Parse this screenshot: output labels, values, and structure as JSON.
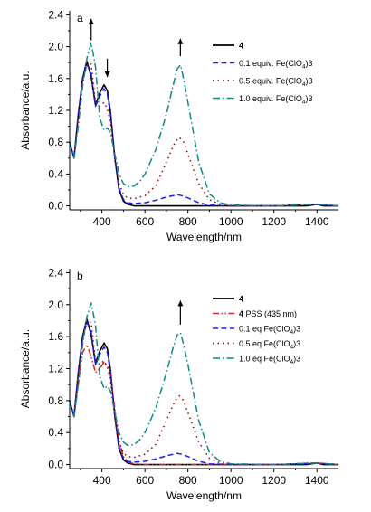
{
  "chart_data": [
    {
      "type": "line",
      "panel_label": "a",
      "xlabel": "Wavelength/nm",
      "ylabel": "Absorbance/a.u.",
      "xlim": [
        250,
        1500
      ],
      "ylim": [
        -0.05,
        2.45
      ],
      "xticks": [
        400,
        600,
        800,
        1000,
        1200,
        1400
      ],
      "yticks": [
        0.0,
        0.4,
        0.8,
        1.2,
        1.6,
        2.0,
        2.4
      ],
      "ytick_labels": [
        "0.0",
        "0.4",
        "0.8",
        "1.2",
        "1.6",
        "2.0",
        "2.4"
      ],
      "grid": false,
      "legend_position": "top-right",
      "arrows": [
        {
          "x": 350,
          "direction": "up"
        },
        {
          "x": 425,
          "direction": "down"
        },
        {
          "x": 765,
          "direction": "up"
        }
      ],
      "series": [
        {
          "name": "4",
          "name_sub": "",
          "name_tail": "",
          "color": "#000000",
          "style": "solid",
          "x": [
            250,
            270,
            290,
            310,
            330,
            350,
            370,
            390,
            410,
            425,
            440,
            460,
            480,
            500,
            520,
            550,
            580,
            650,
            750,
            850,
            1000,
            1200,
            1350,
            1400,
            1430,
            1500
          ],
          "y": [
            0.8,
            0.6,
            1.15,
            1.6,
            1.82,
            1.62,
            1.27,
            1.42,
            1.52,
            1.45,
            1.18,
            0.6,
            0.2,
            0.06,
            0.02,
            0.0,
            0.0,
            0.0,
            0.0,
            0.0,
            0.0,
            0.0,
            0.0,
            0.02,
            0.0,
            0.0
          ]
        },
        {
          "name": "0.1 equiv. Fe(ClO",
          "name_sub": "4",
          "name_tail": ")3",
          "color": "#1a1aff",
          "style": "dash",
          "x": [
            250,
            270,
            290,
            310,
            330,
            350,
            370,
            390,
            410,
            425,
            440,
            460,
            480,
            500,
            520,
            550,
            600,
            650,
            700,
            750,
            770,
            800,
            850,
            900,
            1000,
            1200,
            1400,
            1500
          ],
          "y": [
            0.8,
            0.6,
            1.15,
            1.58,
            1.78,
            1.66,
            1.25,
            1.38,
            1.47,
            1.4,
            1.15,
            0.6,
            0.22,
            0.08,
            0.04,
            0.03,
            0.04,
            0.07,
            0.11,
            0.14,
            0.13,
            0.1,
            0.04,
            0.01,
            0.0,
            0.0,
            0.02,
            0.0
          ]
        },
        {
          "name": "0.5 equiv. Fe(ClO",
          "name_sub": "4",
          "name_tail": ")3",
          "color": "#990000",
          "style": "dot",
          "x": [
            250,
            270,
            290,
            310,
            330,
            350,
            370,
            390,
            410,
            425,
            440,
            460,
            480,
            500,
            520,
            550,
            600,
            650,
            700,
            740,
            760,
            780,
            800,
            850,
            900,
            950,
            1000,
            1200,
            1400,
            1500
          ],
          "y": [
            0.8,
            0.6,
            1.1,
            1.55,
            1.78,
            1.78,
            1.3,
            1.25,
            1.3,
            1.22,
            1.05,
            0.6,
            0.28,
            0.14,
            0.1,
            0.09,
            0.13,
            0.25,
            0.55,
            0.8,
            0.86,
            0.8,
            0.65,
            0.28,
            0.08,
            0.02,
            0.0,
            0.0,
            0.02,
            0.0
          ]
        },
        {
          "name": "1.0 equiv. Fe(ClO",
          "name_sub": "4",
          "name_tail": ")3",
          "color": "#0a8a8a",
          "style": "dashdot",
          "x": [
            250,
            270,
            290,
            310,
            330,
            350,
            370,
            390,
            410,
            425,
            440,
            460,
            480,
            500,
            520,
            550,
            580,
            600,
            650,
            700,
            730,
            750,
            765,
            780,
            800,
            850,
            900,
            950,
            1000,
            1200,
            1400,
            1500
          ],
          "y": [
            0.8,
            0.6,
            1.0,
            1.5,
            1.85,
            2.05,
            1.75,
            1.1,
            0.95,
            0.98,
            0.92,
            0.65,
            0.4,
            0.28,
            0.24,
            0.25,
            0.32,
            0.4,
            0.7,
            1.15,
            1.5,
            1.72,
            1.77,
            1.6,
            1.3,
            0.55,
            0.15,
            0.04,
            0.01,
            0.0,
            0.02,
            0.0
          ]
        }
      ]
    },
    {
      "type": "line",
      "panel_label": "b",
      "xlabel": "Wavelength/nm",
      "ylabel": "Absorbance/a.u.",
      "xlim": [
        250,
        1500
      ],
      "ylim": [
        -0.05,
        2.45
      ],
      "xticks": [
        400,
        600,
        800,
        1000,
        1200,
        1400
      ],
      "yticks": [
        0.0,
        0.4,
        0.8,
        1.2,
        1.6,
        2.0,
        2.4
      ],
      "ytick_labels": [
        "0.0",
        "0.4",
        "0.8",
        "1.2",
        "1.6",
        "2.0",
        "2.4"
      ],
      "grid": false,
      "legend_position": "top-right",
      "arrows": [
        {
          "x": 765,
          "direction": "up"
        }
      ],
      "series": [
        {
          "name": "4",
          "name_sub": "",
          "name_tail": "",
          "color": "#000000",
          "style": "solid",
          "x": [
            250,
            270,
            290,
            310,
            330,
            350,
            370,
            390,
            410,
            425,
            440,
            460,
            480,
            500,
            520,
            550,
            580,
            650,
            750,
            850,
            1000,
            1200,
            1350,
            1400,
            1430,
            1500
          ],
          "y": [
            0.8,
            0.6,
            1.15,
            1.6,
            1.82,
            1.62,
            1.27,
            1.42,
            1.52,
            1.45,
            1.18,
            0.6,
            0.2,
            0.06,
            0.02,
            0.0,
            0.0,
            0.0,
            0.0,
            0.0,
            0.0,
            0.0,
            0.0,
            0.02,
            0.0,
            0.0
          ]
        },
        {
          "name": "4 PSS (435 nm)",
          "name_sub": "",
          "name_tail": "",
          "color": "#e02020",
          "style": "dashdotdot",
          "x": [
            250,
            270,
            290,
            310,
            330,
            350,
            370,
            390,
            410,
            435,
            460,
            480,
            500,
            520,
            550,
            600,
            800,
            1000,
            1200,
            1400,
            1500
          ],
          "y": [
            0.8,
            0.6,
            1.0,
            1.4,
            1.5,
            1.35,
            1.15,
            1.2,
            1.28,
            1.2,
            0.7,
            0.3,
            0.1,
            0.03,
            0.01,
            0.0,
            0.0,
            0.0,
            0.0,
            0.02,
            0.0
          ]
        },
        {
          "name": "0.1 eq Fe(ClO",
          "name_sub": "4",
          "name_tail": ")3",
          "color": "#1a1aff",
          "style": "dash",
          "x": [
            250,
            270,
            290,
            310,
            330,
            350,
            370,
            390,
            410,
            425,
            440,
            460,
            480,
            500,
            520,
            550,
            600,
            650,
            700,
            750,
            770,
            800,
            850,
            900,
            1000,
            1200,
            1400,
            1500
          ],
          "y": [
            0.8,
            0.6,
            1.15,
            1.58,
            1.78,
            1.66,
            1.25,
            1.38,
            1.47,
            1.4,
            1.15,
            0.6,
            0.22,
            0.08,
            0.04,
            0.03,
            0.04,
            0.07,
            0.11,
            0.14,
            0.13,
            0.1,
            0.04,
            0.01,
            0.0,
            0.0,
            0.02,
            0.0
          ]
        },
        {
          "name": "0.5 eq Fe(ClO",
          "name_sub": "4",
          "name_tail": ")3",
          "color": "#990000",
          "style": "dot",
          "x": [
            250,
            270,
            290,
            310,
            330,
            350,
            370,
            390,
            410,
            425,
            440,
            460,
            480,
            500,
            520,
            550,
            600,
            650,
            700,
            740,
            760,
            780,
            800,
            850,
            900,
            950,
            1000,
            1200,
            1400,
            1500
          ],
          "y": [
            0.8,
            0.6,
            1.1,
            1.55,
            1.78,
            1.78,
            1.3,
            1.25,
            1.3,
            1.22,
            1.05,
            0.6,
            0.28,
            0.14,
            0.1,
            0.09,
            0.13,
            0.25,
            0.55,
            0.8,
            0.86,
            0.8,
            0.65,
            0.28,
            0.08,
            0.02,
            0.0,
            0.0,
            0.02,
            0.0
          ]
        },
        {
          "name": "1.0 eq Fe(ClO",
          "name_sub": "4",
          "name_tail": ")3",
          "color": "#0a8a8a",
          "style": "dashdot",
          "x": [
            250,
            270,
            290,
            310,
            330,
            350,
            370,
            390,
            410,
            425,
            440,
            460,
            480,
            500,
            520,
            550,
            580,
            600,
            650,
            700,
            730,
            750,
            765,
            780,
            800,
            850,
            900,
            950,
            1000,
            1200,
            1400,
            1500
          ],
          "y": [
            0.8,
            0.6,
            1.0,
            1.5,
            1.85,
            2.02,
            1.75,
            1.1,
            0.95,
            0.98,
            0.92,
            0.65,
            0.4,
            0.28,
            0.24,
            0.25,
            0.32,
            0.4,
            0.7,
            1.15,
            1.45,
            1.62,
            1.65,
            1.5,
            1.25,
            0.55,
            0.15,
            0.04,
            0.01,
            0.0,
            0.02,
            0.0
          ]
        }
      ]
    }
  ]
}
